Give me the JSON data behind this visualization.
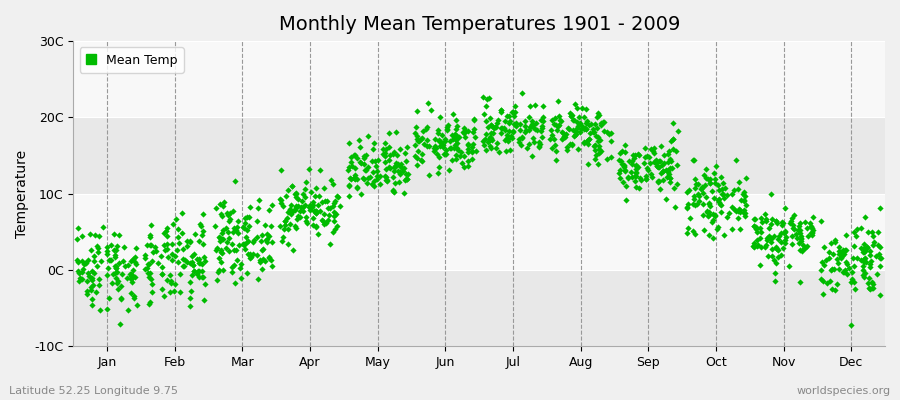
{
  "title": "Monthly Mean Temperatures 1901 - 2009",
  "ylabel": "Temperature",
  "ylim": [
    -10,
    30
  ],
  "yticks": [
    -10,
    0,
    10,
    20,
    30
  ],
  "ytick_labels": [
    "-10C",
    "0C",
    "10C",
    "20C",
    "30C"
  ],
  "months": [
    "Jan",
    "Feb",
    "Mar",
    "Apr",
    "May",
    "Jun",
    "Jul",
    "Aug",
    "Sep",
    "Oct",
    "Nov",
    "Dec"
  ],
  "monthly_means": [
    0.3,
    0.8,
    4.0,
    8.0,
    13.0,
    16.5,
    18.5,
    18.0,
    13.5,
    9.0,
    4.5,
    1.5
  ],
  "monthly_stds": [
    2.8,
    2.8,
    2.5,
    2.0,
    2.0,
    1.8,
    1.8,
    1.8,
    1.8,
    2.0,
    2.0,
    2.5
  ],
  "n_years": 109,
  "marker_color": "#00bb00",
  "marker_size": 5,
  "bg_color": "#f0f0f0",
  "plot_bg_color": "#f0f0f0",
  "band_color_light": "#f8f8f8",
  "band_color_dark": "#e8e8e8",
  "title_fontsize": 14,
  "axis_label_fontsize": 10,
  "tick_fontsize": 9,
  "legend_label": "Mean Temp",
  "bottom_left_text": "Latitude 52.25 Longitude 9.75",
  "bottom_right_text": "worldspecies.org",
  "dashed_line_color": "#999999",
  "seed": 42
}
